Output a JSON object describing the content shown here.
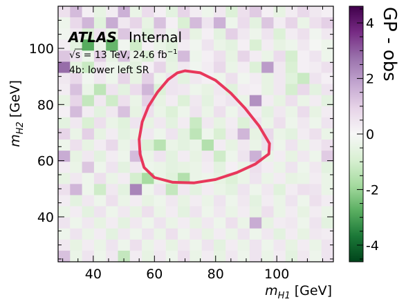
{
  "chart_data": {
    "type": "heatmap",
    "xlabel_main": "m",
    "xlabel_sub": "H1",
    "xlabel_unit": " [GeV]",
    "ylabel_main": "m",
    "ylabel_sub": "H2",
    "ylabel_unit": " [GeV]",
    "colorbar_label": "GP - obs",
    "x_range": [
      28.5,
      118.5
    ],
    "y_range": [
      24,
      115
    ],
    "x_ticks": [
      40,
      60,
      80,
      100
    ],
    "y_ticks": [
      40,
      60,
      80,
      100
    ],
    "color_range": [
      -4.6,
      4.6
    ],
    "colorbar_ticks": [
      4,
      2,
      0,
      -2,
      -4
    ],
    "colorbar_tick_labels": [
      "4",
      "2",
      "0",
      "-2",
      "-4"
    ],
    "annotations": {
      "experiment": "ATLAS",
      "status": "Internal",
      "energy_prefix": "√s = 13 TeV, 24.6 fb",
      "energy_sup": "−1",
      "region": "4b: lower left SR"
    },
    "sr_contour_color": "#e8375b",
    "bins": {
      "nx": 23,
      "ny": 23,
      "x0": 28.5,
      "dx": 3.913,
      "y0": 24,
      "dy": 3.957
    },
    "values": [
      [
        0.6,
        1.4,
        0.2,
        -0.5,
        0.3,
        1.6,
        -0.4,
        0.7,
        0.2,
        -0.6,
        0.9,
        0.3,
        -0.3,
        0.4,
        -0.8,
        0.6,
        1.1,
        0.2,
        -0.5,
        0.3,
        0.8,
        0.4,
        0.2
      ],
      [
        -0.3,
        0.8,
        1.5,
        -0.7,
        1.7,
        0.4,
        0.9,
        -0.5,
        1.3,
        0.2,
        -0.9,
        1.4,
        0.5,
        1.6,
        -0.3,
        0.7,
        -0.6,
        1.2,
        0.3,
        0.9,
        -0.4,
        0.6,
        1.0
      ],
      [
        -0.2,
        0.4,
        -0.9,
        0.5,
        -0.4,
        1.2,
        0.3,
        -0.7,
        0.6,
        -0.3,
        0.8,
        -0.5,
        0.2,
        -0.6,
        1.0,
        0.4,
        -0.3,
        0.5,
        -0.8,
        0.3,
        0.6,
        -0.2,
        0.4
      ],
      [
        0.3,
        -0.6,
        -2.8,
        -0.4,
        -2.6,
        -0.2,
        -1.1,
        0.2,
        -0.4,
        -0.7,
        0.3,
        -0.2,
        0.5,
        -0.4,
        -0.6,
        0.2,
        -0.9,
        0.3,
        -0.5,
        -0.3,
        0.4,
        -0.1,
        -0.3
      ],
      [
        1.2,
        0.5,
        -0.3,
        1.0,
        -0.5,
        1.3,
        -0.4,
        -0.8,
        0.3,
        -0.6,
        1.4,
        -0.3,
        0.2,
        0.6,
        -0.5,
        0.9,
        0.3,
        -0.4,
        0.7,
        -1.0,
        0.2,
        0.5,
        -0.3
      ],
      [
        2.8,
        -0.6,
        -1.2,
        0.4,
        -0.3,
        -0.4,
        -0.6,
        0.2,
        0.9,
        -0.5,
        0.4,
        -0.2,
        0.3,
        0.8,
        -0.4,
        0.3,
        -0.8,
        2.0,
        0.4,
        -0.9,
        0.2,
        0.3,
        0.6
      ],
      [
        0.4,
        0.8,
        -0.2,
        0.4,
        -0.3,
        0.9,
        -0.5,
        1.0,
        -0.3,
        0.5,
        -0.6,
        0.4,
        0.2,
        -0.3,
        0.6,
        -0.2,
        0.3,
        -0.5,
        0.4,
        -0.7,
        -1.2,
        0.5,
        0.2
      ],
      [
        0.3,
        1.3,
        -0.4,
        -1.4,
        0.5,
        -0.6,
        0.7,
        1.5,
        -0.8,
        0.5,
        0.4,
        -0.3,
        -0.5,
        0.4,
        -0.7,
        0.3,
        0.2,
        -0.5,
        0.4,
        -1.0,
        0.8,
        -0.6,
        0.5
      ],
      [
        -0.5,
        0.9,
        -1.3,
        0.4,
        -1.1,
        0.6,
        -0.4,
        1.0,
        -0.5,
        0.3,
        -0.8,
        0.4,
        -0.6,
        0.3,
        0.5,
        -0.4,
        2.2,
        0.3,
        -0.5,
        0.6,
        -0.4,
        0.3,
        -0.6
      ],
      [
        0.2,
        1.4,
        0.3,
        -0.6,
        0.4,
        1.3,
        -0.5,
        0.6,
        -0.4,
        -0.8,
        -0.3,
        0.5,
        -0.4,
        0.6,
        -0.3,
        0.5,
        0.3,
        -0.6,
        0.4,
        -0.4,
        0.7,
        -0.5,
        0.3
      ],
      [
        -0.6,
        0.4,
        -0.9,
        0.6,
        -0.4,
        -0.7,
        0.5,
        -0.5,
        0.4,
        -0.6,
        0.3,
        -1.2,
        0.4,
        -0.5,
        0.3,
        -0.8,
        0.5,
        -0.4,
        0.6,
        -0.3,
        0.4,
        -0.3,
        0.5
      ],
      [
        0.9,
        -0.4,
        1.0,
        -0.5,
        0.3,
        -0.6,
        -0.4,
        0.4,
        -0.3,
        0.5,
        -0.6,
        -1.4,
        -0.3,
        -0.9,
        0.4,
        1.5,
        -0.5,
        0.8,
        -0.4,
        -0.6,
        0.3,
        0.6,
        -0.4
      ],
      [
        -0.3,
        0.6,
        -0.5,
        0.3,
        0.8,
        -0.4,
        0.5,
        -0.8,
        -1.5,
        -0.4,
        -0.6,
        -0.4,
        -1.6,
        0.3,
        -0.5,
        0.4,
        -0.4,
        0.6,
        -0.3,
        0.5,
        -0.4,
        0.3,
        0.6
      ],
      [
        1.7,
        -0.5,
        0.4,
        -0.6,
        0.3,
        -0.3,
        1.4,
        -0.4,
        0.5,
        -0.6,
        0.3,
        -0.5,
        0.4,
        -1.1,
        -0.3,
        0.5,
        1.6,
        -0.4,
        0.3,
        -0.5,
        0.4,
        -0.3,
        1.1
      ],
      [
        0.3,
        -0.4,
        1.2,
        -0.3,
        0.5,
        -0.6,
        0.4,
        -0.3,
        -0.4,
        -0.6,
        -0.5,
        -0.4,
        0.3,
        -0.6,
        0.2,
        -0.4,
        0.6,
        0.3,
        -0.4,
        0.5,
        -0.3,
        0.4,
        -0.6
      ],
      [
        -0.5,
        0.4,
        -0.3,
        0.6,
        -0.4,
        0.3,
        -1.0,
        -1.8,
        -0.4,
        -0.7,
        -1.6,
        -0.4,
        -0.3,
        -0.5,
        -0.8,
        -0.4,
        0.5,
        -0.4,
        0.3,
        -0.5,
        -0.4,
        0.3,
        -0.4
      ],
      [
        0.6,
        1.5,
        -0.3,
        -1.1,
        0.4,
        -0.6,
        2.4,
        -0.3,
        0.5,
        -1.3,
        0.4,
        -0.6,
        0.3,
        -0.4,
        -0.6,
        0.5,
        -0.3,
        0.4,
        -0.7,
        0.3,
        0.6,
        0.5,
        -0.4
      ],
      [
        0.3,
        -0.6,
        0.4,
        -0.3,
        0.6,
        -0.4,
        0.3,
        -0.5,
        -0.3,
        0.4,
        -0.5,
        0.3,
        -0.4,
        0.5,
        -0.3,
        0.4,
        -0.6,
        0.3,
        -0.4,
        0.5,
        -0.3,
        0.6,
        0.3
      ],
      [
        -0.4,
        0.3,
        -0.6,
        0.5,
        -0.3,
        0.4,
        -0.5,
        0.6,
        -0.4,
        0.3,
        -0.6,
        0.5,
        -0.3,
        0.4,
        -0.4,
        0.3,
        -0.5,
        0.6,
        -0.4,
        0.3,
        -0.5,
        0.3,
        -0.4
      ],
      [
        0.5,
        -0.3,
        0.4,
        -0.5,
        0.3,
        -0.6,
        0.4,
        -0.3,
        0.5,
        -0.4,
        0.3,
        -0.5,
        0.4,
        -0.3,
        0.6,
        -0.4,
        1.7,
        -0.5,
        0.3,
        0.4,
        -0.3,
        0.5,
        -0.6
      ],
      [
        -0.3,
        0.5,
        -0.4,
        0.3,
        -0.6,
        0.4,
        -0.3,
        0.5,
        -0.4,
        0.6,
        -0.3,
        0.4,
        -0.5,
        0.3,
        -0.4,
        0.5,
        -0.3,
        0.4,
        -0.6,
        0.3,
        -0.5,
        0.4,
        0.3
      ],
      [
        0.4,
        -0.5,
        0.3,
        -0.4,
        0.5,
        -0.3,
        0.6,
        -0.4,
        0.3,
        -0.5,
        0.4,
        -0.3,
        0.5,
        -0.6,
        0.3,
        -0.4,
        0.5,
        -0.3,
        0.4,
        -0.5,
        0.3,
        -0.4,
        0.5
      ],
      [
        1.3,
        -0.4,
        0.5,
        -0.3,
        0.4,
        -1.3,
        0.3,
        -0.5,
        0.4,
        -0.3,
        0.6,
        -0.4,
        0.3,
        -0.5,
        0.4,
        -0.3,
        0.5,
        -0.4,
        0.3,
        -0.6,
        0.4,
        -0.3,
        0.5
      ]
    ],
    "contour": [
      [
        70.0,
        92.0
      ],
      [
        75.0,
        91.3
      ],
      [
        80.0,
        88.6
      ],
      [
        85.0,
        84.0
      ],
      [
        89.6,
        78.7
      ],
      [
        94.2,
        72.4
      ],
      [
        97.6,
        66.1
      ],
      [
        97.4,
        62.4
      ],
      [
        93.0,
        58.8
      ],
      [
        87.0,
        55.8
      ],
      [
        80.0,
        53.3
      ],
      [
        73.0,
        52.1
      ],
      [
        66.0,
        52.3
      ],
      [
        60.0,
        54.0
      ],
      [
        56.6,
        57.6
      ],
      [
        55.3,
        62.4
      ],
      [
        55.0,
        67.6
      ],
      [
        56.0,
        73.8
      ],
      [
        58.0,
        79.3
      ],
      [
        61.0,
        84.4
      ],
      [
        64.5,
        88.9
      ],
      [
        67.5,
        91.3
      ],
      [
        70.0,
        92.0
      ]
    ]
  }
}
